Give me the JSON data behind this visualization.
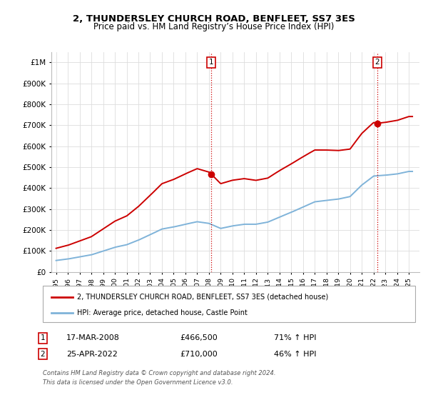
{
  "title": "2, THUNDERSLEY CHURCH ROAD, BENFLEET, SS7 3ES",
  "subtitle": "Price paid vs. HM Land Registry’s House Price Index (HPI)",
  "house_color": "#cc0000",
  "hpi_color": "#7fb3d9",
  "vline_color": "#cc0000",
  "sale1_year": 2008.21,
  "sale2_year": 2022.32,
  "sale1_price": 466500,
  "sale2_price": 710000,
  "annotation1_date": "17-MAR-2008",
  "annotation1_price": "£466,500",
  "annotation1_hpi": "71% ↑ HPI",
  "annotation2_date": "25-APR-2022",
  "annotation2_price": "£710,000",
  "annotation2_hpi": "46% ↑ HPI",
  "ylim": [
    0,
    1050000
  ],
  "yticks": [
    0,
    100000,
    200000,
    300000,
    400000,
    500000,
    600000,
    700000,
    800000,
    900000,
    1000000
  ],
  "ytick_labels": [
    "£0",
    "£100K",
    "£200K",
    "£300K",
    "£400K",
    "£500K",
    "£600K",
    "£700K",
    "£800K",
    "£900K",
    "£1M"
  ],
  "legend_house": "2, THUNDERSLEY CHURCH ROAD, BENFLEET, SS7 3ES (detached house)",
  "legend_hpi": "HPI: Average price, detached house, Castle Point",
  "footer": "Contains HM Land Registry data © Crown copyright and database right 2024.\nThis data is licensed under the Open Government Licence v3.0.",
  "xtick_years": [
    1995,
    1996,
    1997,
    1998,
    1999,
    2000,
    2001,
    2002,
    2003,
    2004,
    2005,
    2006,
    2007,
    2008,
    2009,
    2010,
    2011,
    2012,
    2013,
    2014,
    2015,
    2016,
    2017,
    2018,
    2019,
    2020,
    2021,
    2022,
    2023,
    2024,
    2025
  ],
  "hpi_years": [
    1995,
    1996,
    1997,
    1998,
    1999,
    2000,
    2001,
    2002,
    2003,
    2004,
    2005,
    2006,
    2007,
    2008,
    2009,
    2010,
    2011,
    2012,
    2013,
    2014,
    2015,
    2016,
    2017,
    2018,
    2019,
    2020,
    2021,
    2022,
    2023,
    2024,
    2025
  ],
  "hpi_vals": [
    55000,
    62000,
    72000,
    82000,
    100000,
    118000,
    130000,
    152000,
    178000,
    205000,
    215000,
    228000,
    240000,
    232000,
    208000,
    220000,
    228000,
    228000,
    238000,
    262000,
    285000,
    310000,
    335000,
    342000,
    348000,
    360000,
    415000,
    458000,
    462000,
    468000,
    480000
  ]
}
